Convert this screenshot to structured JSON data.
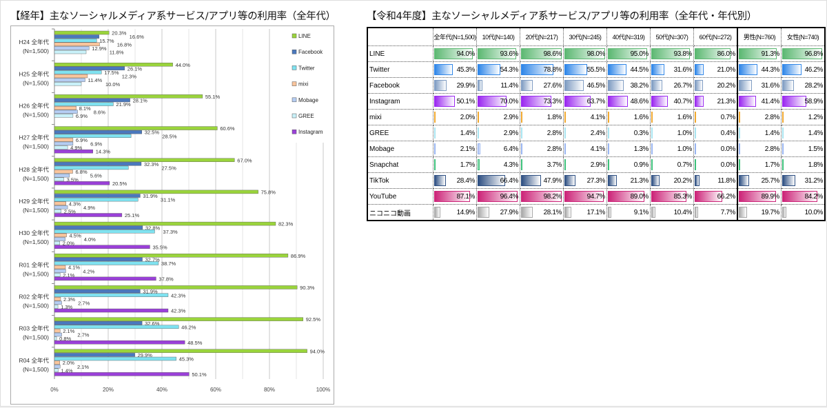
{
  "chart_data": [
    {
      "type": "bar",
      "orientation": "horizontal",
      "title": "【経年】主なソーシャルメディア系サービス/アプリ等の利用率（全年代）",
      "categories": [
        "H24 全年代\n(N=1,500)",
        "H25 全年代\n(N=1,500)",
        "H26 全年代\n(N=1,500)",
        "H27 全年代\n(N=1,500)",
        "H28 全年代\n(N=1,500)",
        "H29 全年代\n(N=1,500)",
        "H30 全年代\n(N=1,500)",
        "R01 全年代\n(N=1,500)",
        "R02 全年代\n(N=1,500)",
        "R03 全年代\n(N=1,500)",
        "R04 全年代\n(N=1,500)"
      ],
      "xlim": [
        0,
        100
      ],
      "xticks": [
        "0%",
        "20%",
        "40%",
        "60%",
        "80%",
        "100%"
      ],
      "grid": true,
      "legend": "right",
      "series": [
        {
          "name": "LINE",
          "color": "#9ad43c",
          "values": [
            20.3,
            44.0,
            55.1,
            60.6,
            67.0,
            75.8,
            82.3,
            86.9,
            90.3,
            92.5,
            94.0
          ]
        },
        {
          "name": "Facebook",
          "color": "#4a78bd",
          "values": [
            16.6,
            26.1,
            28.1,
            32.5,
            32.3,
            31.9,
            32.8,
            32.7,
            31.9,
            32.6,
            29.9
          ]
        },
        {
          "name": "Twitter",
          "color": "#7fe2f0",
          "values": [
            15.7,
            17.5,
            21.9,
            28.5,
            27.5,
            31.1,
            37.3,
            38.7,
            42.3,
            46.2,
            45.3
          ]
        },
        {
          "name": "mixi",
          "color": "#f9c59c",
          "values": [
            16.8,
            12.3,
            8.1,
            6.9,
            6.8,
            4.3,
            4.5,
            4.1,
            2.3,
            2.1,
            2.0
          ]
        },
        {
          "name": "Mobage",
          "color": "#b5cdf2",
          "values": [
            12.9,
            11.4,
            8.6,
            6.9,
            5.6,
            4.9,
            4.0,
            4.2,
            2.7,
            2.7,
            2.1
          ]
        },
        {
          "name": "GREE",
          "color": "#c9f1f9",
          "values": [
            11.8,
            10.0,
            6.9,
            4.9,
            3.5,
            2.5,
            2.0,
            2.1,
            1.3,
            0.8,
            1.4
          ]
        },
        {
          "name": "Instagram",
          "color": "#9a40d8",
          "values": [
            null,
            null,
            null,
            14.3,
            20.5,
            25.1,
            35.5,
            37.8,
            42.3,
            48.5,
            50.1
          ]
        }
      ]
    },
    {
      "type": "table",
      "title": "【令和4年度】主なソーシャルメディア系サービス/アプリ等の利用率（全年代・年代別）",
      "columns": [
        "全年代(N=1,500)",
        "10代(N=140)",
        "20代(N=217)",
        "30代(N=245)",
        "40代(N=319)",
        "50代(N=307)",
        "60代(N=272)",
        "男性(N=760)",
        "女性(N=740)"
      ],
      "rows": [
        {
          "name": "LINE",
          "color": "#5cb872",
          "values": [
            94.0,
            93.6,
            98.6,
            98.0,
            95.0,
            93.8,
            86.0,
            91.3,
            96.8
          ]
        },
        {
          "name": "Twitter",
          "color": "#2f86e8",
          "values": [
            45.3,
            54.3,
            78.8,
            55.5,
            44.5,
            31.6,
            21.0,
            44.3,
            46.2
          ]
        },
        {
          "name": "Facebook",
          "color": "#7f9cc2",
          "values": [
            29.9,
            11.4,
            27.6,
            46.5,
            38.2,
            26.7,
            20.2,
            31.6,
            28.2
          ]
        },
        {
          "name": "Instagram",
          "color": "#9a28f0",
          "values": [
            50.1,
            70.0,
            73.3,
            63.7,
            48.6,
            40.7,
            21.3,
            41.4,
            58.9
          ]
        },
        {
          "name": "mixi",
          "color": "#f0a830",
          "values": [
            2.0,
            2.9,
            1.8,
            4.1,
            1.6,
            1.6,
            0.7,
            2.8,
            1.2
          ]
        },
        {
          "name": "GREE",
          "color": "#a8e4f0",
          "values": [
            1.4,
            2.9,
            2.8,
            2.4,
            0.3,
            1.0,
            0.4,
            1.4,
            1.4
          ]
        },
        {
          "name": "Mobage",
          "color": "#98b4f0",
          "values": [
            2.1,
            6.4,
            2.8,
            4.1,
            1.3,
            1.0,
            0.0,
            2.8,
            1.5
          ]
        },
        {
          "name": "Snapchat",
          "color": "#3cc07a",
          "values": [
            1.7,
            4.3,
            3.7,
            2.9,
            0.9,
            0.7,
            0.0,
            1.7,
            1.8
          ]
        },
        {
          "name": "TikTok",
          "color": "#2e4f82",
          "values": [
            28.4,
            66.4,
            47.9,
            27.3,
            21.3,
            20.2,
            11.8,
            25.7,
            31.2
          ]
        },
        {
          "name": "YouTube",
          "color": "#cc2478",
          "values": [
            87.1,
            96.4,
            98.2,
            94.7,
            89.0,
            85.3,
            66.2,
            89.9,
            84.2
          ]
        },
        {
          "name": "ニコニコ動画",
          "color": "#a8a8a8",
          "values": [
            14.9,
            27.9,
            28.1,
            17.1,
            9.1,
            10.4,
            7.7,
            19.7,
            10.0
          ]
        }
      ]
    }
  ]
}
